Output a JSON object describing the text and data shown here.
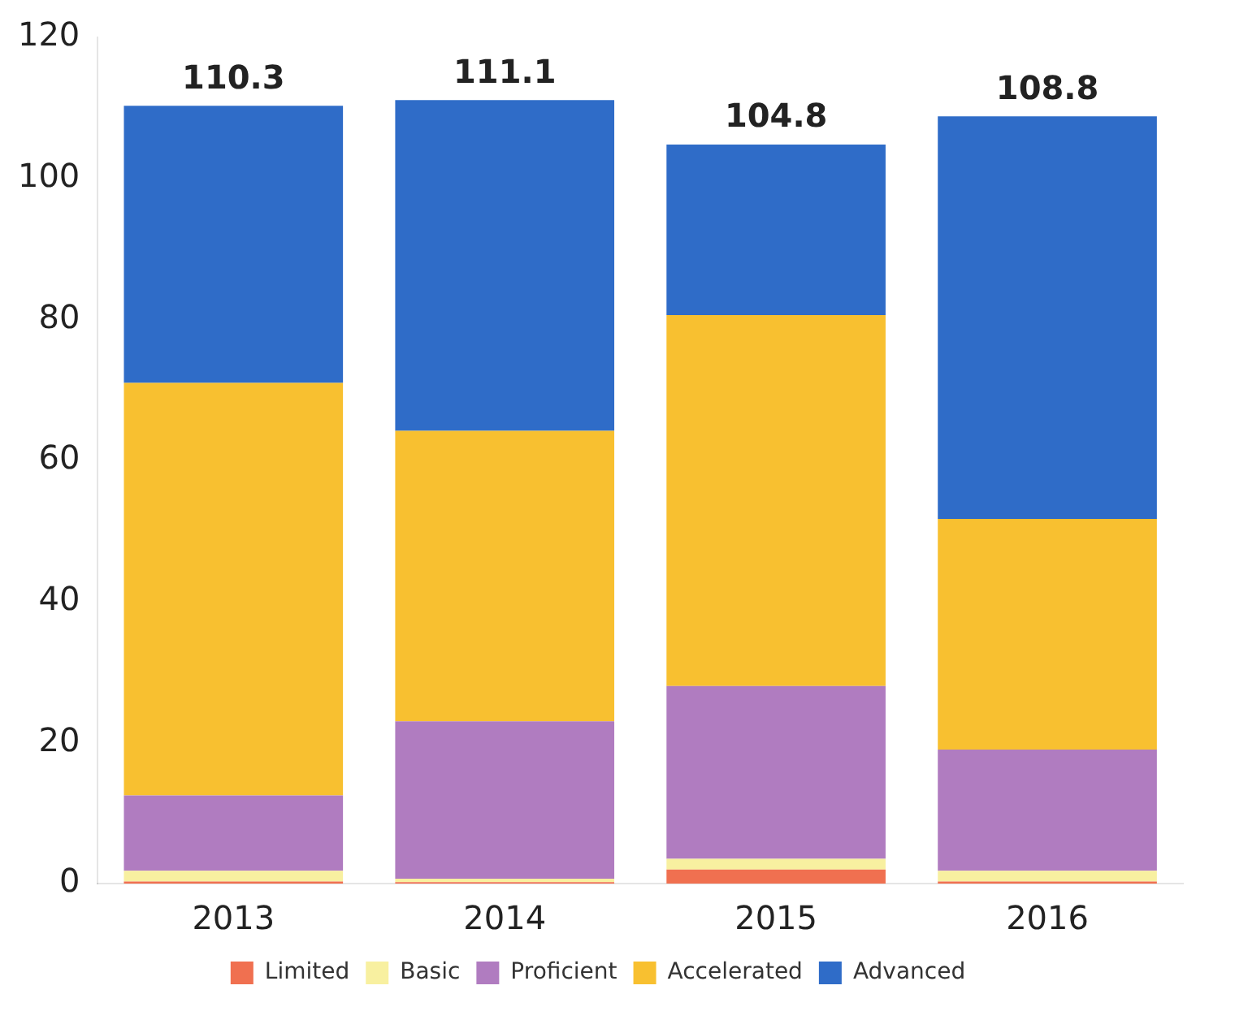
{
  "chart_data": {
    "type": "bar",
    "stacked": true,
    "categories": [
      "2013",
      "2014",
      "2015",
      "2016"
    ],
    "series": [
      {
        "name": "Limited",
        "color": "#f07050",
        "values": [
          0.3,
          0.2,
          2,
          0.3
        ]
      },
      {
        "name": "Basic",
        "color": "#f8f0a0",
        "values": [
          1.5,
          0.5,
          1.5,
          1.5
        ]
      },
      {
        "name": "Proficient",
        "color": "#b07cc0",
        "values": [
          10.7,
          22.3,
          24.5,
          17.2
        ]
      },
      {
        "name": "Accelerated",
        "color": "#f8c030",
        "values": [
          58.5,
          41.2,
          52.6,
          32.7
        ]
      },
      {
        "name": "Advanced",
        "color": "#2f6cc8",
        "values": [
          39.3,
          46.9,
          24.2,
          57.1
        ]
      }
    ],
    "totals": [
      "110.3",
      "111.1",
      "104.8",
      "108.8"
    ],
    "ylim": [
      0,
      120
    ],
    "yticks": [
      0,
      20,
      40,
      60,
      80,
      100,
      120
    ],
    "grid": false,
    "legend": "bottom"
  }
}
